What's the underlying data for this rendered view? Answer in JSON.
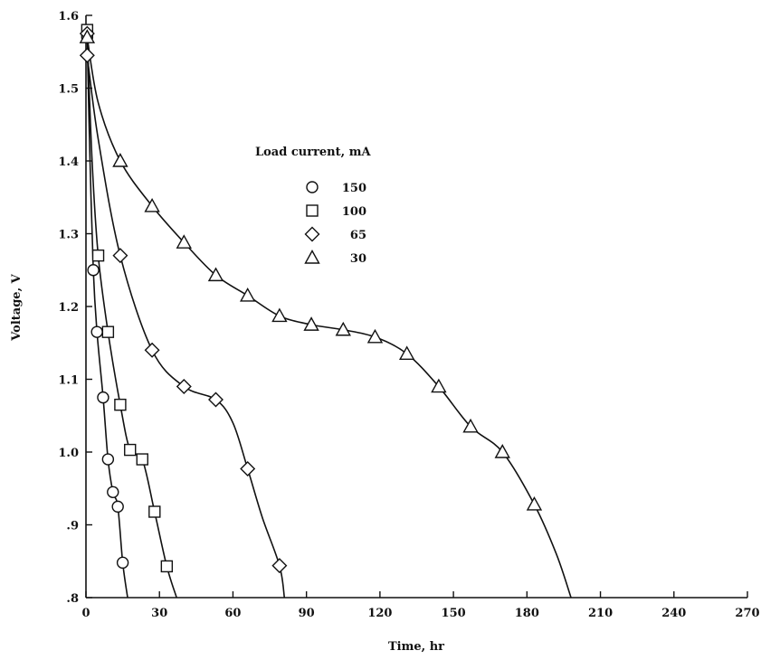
{
  "chart_data": {
    "type": "line",
    "xlabel": "Time, hr",
    "ylabel": "Voltage, V",
    "xlim": [
      0,
      270
    ],
    "ylim": [
      0.8,
      1.6
    ],
    "x_ticks": [
      0,
      30,
      60,
      90,
      120,
      150,
      180,
      210,
      240,
      270
    ],
    "x_tick_labels": [
      "0",
      "30",
      "60",
      "90",
      "120",
      "150",
      "180",
      "210",
      "240",
      "270"
    ],
    "y_ticks": [
      0.8,
      0.9,
      1.0,
      1.1,
      1.2,
      1.3,
      1.4,
      1.5,
      1.6
    ],
    "y_tick_labels": [
      ".8",
      ".9",
      "1.0",
      "1.1",
      "1.2",
      "1.3",
      "1.4",
      "1.5",
      "1.6"
    ],
    "grid": false,
    "legend": {
      "title": "Load current, mA",
      "position": "upper-middle",
      "entries": [
        {
          "label": "150",
          "marker": "circle"
        },
        {
          "label": "100",
          "marker": "square"
        },
        {
          "label": "65",
          "marker": "diamond"
        },
        {
          "label": "30",
          "marker": "triangle"
        }
      ]
    },
    "series": [
      {
        "name": "150",
        "marker": "circle",
        "points": [
          [
            0.5,
            1.57
          ],
          [
            3,
            1.25
          ],
          [
            4.5,
            1.165
          ],
          [
            7,
            1.075
          ],
          [
            9,
            0.99
          ],
          [
            11,
            0.945
          ],
          [
            13,
            0.925
          ],
          [
            15,
            0.848
          ]
        ],
        "curve": [
          [
            0.5,
            1.57
          ],
          [
            1.5,
            1.42
          ],
          [
            3,
            1.25
          ],
          [
            4.5,
            1.165
          ],
          [
            7,
            1.075
          ],
          [
            9,
            0.99
          ],
          [
            11,
            0.945
          ],
          [
            13,
            0.925
          ],
          [
            15,
            0.848
          ],
          [
            17,
            0.8
          ]
        ]
      },
      {
        "name": "100",
        "marker": "square",
        "points": [
          [
            0.5,
            1.58
          ],
          [
            5,
            1.27
          ],
          [
            9,
            1.165
          ],
          [
            14,
            1.065
          ],
          [
            18,
            1.003
          ],
          [
            23,
            0.99
          ],
          [
            28,
            0.918
          ],
          [
            33,
            0.843
          ]
        ],
        "curve": [
          [
            0.5,
            1.575
          ],
          [
            2.5,
            1.4
          ],
          [
            5,
            1.27
          ],
          [
            9,
            1.165
          ],
          [
            14,
            1.065
          ],
          [
            18,
            1.003
          ],
          [
            23,
            0.99
          ],
          [
            28,
            0.918
          ],
          [
            33,
            0.843
          ],
          [
            37,
            0.8
          ]
        ]
      },
      {
        "name": "65",
        "marker": "diamond",
        "points": [
          [
            0.5,
            1.575
          ],
          [
            0.5,
            1.545
          ],
          [
            14,
            1.27
          ],
          [
            27,
            1.14
          ],
          [
            40,
            1.09
          ],
          [
            53,
            1.072
          ],
          [
            66,
            0.977
          ],
          [
            79,
            0.844
          ]
        ],
        "curve": [
          [
            0.5,
            1.545
          ],
          [
            5,
            1.43
          ],
          [
            14,
            1.27
          ],
          [
            27,
            1.14
          ],
          [
            40,
            1.09
          ],
          [
            53,
            1.072
          ],
          [
            60,
            1.04
          ],
          [
            66,
            0.977
          ],
          [
            72,
            0.91
          ],
          [
            79,
            0.844
          ],
          [
            81,
            0.8
          ]
        ]
      },
      {
        "name": "30",
        "marker": "triangle",
        "points": [
          [
            0.5,
            1.57
          ],
          [
            14,
            1.4
          ],
          [
            27,
            1.338
          ],
          [
            40,
            1.288
          ],
          [
            53,
            1.243
          ],
          [
            66,
            1.215
          ],
          [
            79,
            1.187
          ],
          [
            92,
            1.175
          ],
          [
            105,
            1.168
          ],
          [
            118,
            1.158
          ],
          [
            131,
            1.135
          ],
          [
            144,
            1.09
          ],
          [
            157,
            1.035
          ],
          [
            170,
            1.0
          ],
          [
            183,
            0.928
          ]
        ],
        "curve": [
          [
            0.5,
            1.57
          ],
          [
            5,
            1.48
          ],
          [
            14,
            1.4
          ],
          [
            27,
            1.338
          ],
          [
            40,
            1.288
          ],
          [
            53,
            1.243
          ],
          [
            66,
            1.215
          ],
          [
            79,
            1.187
          ],
          [
            92,
            1.175
          ],
          [
            105,
            1.168
          ],
          [
            118,
            1.158
          ],
          [
            131,
            1.135
          ],
          [
            144,
            1.09
          ],
          [
            157,
            1.035
          ],
          [
            170,
            1.0
          ],
          [
            183,
            0.928
          ],
          [
            192,
            0.86
          ],
          [
            198,
            0.8
          ]
        ]
      }
    ]
  }
}
